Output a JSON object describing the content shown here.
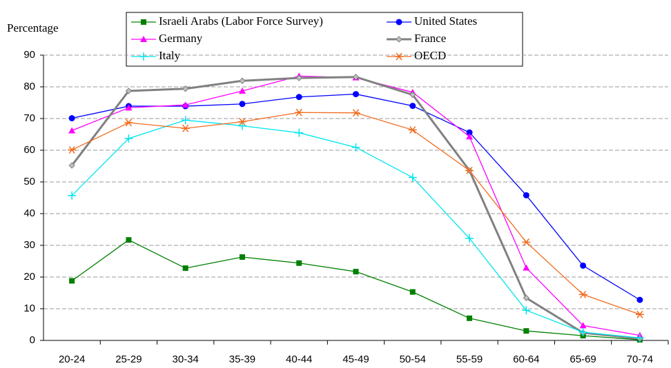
{
  "chart_data": {
    "type": "line",
    "y_label": "Percentage",
    "categories": [
      "20-24",
      "25-29",
      "30-34",
      "35-39",
      "40-44",
      "45-49",
      "50-54",
      "55-59",
      "60-64",
      "65-69",
      "70-74"
    ],
    "series": [
      {
        "name": "Israeli Arabs (Labor Force Survey)",
        "color": "#008000",
        "marker": "square",
        "values": [
          18.8,
          31.7,
          22.8,
          26.3,
          24.4,
          21.7,
          15.3,
          7.0,
          3.0,
          1.5,
          0.2
        ]
      },
      {
        "name": "United States",
        "color": "#0000ff",
        "marker": "circle",
        "values": [
          70.1,
          73.9,
          73.9,
          74.6,
          76.8,
          77.7,
          74.0,
          65.6,
          45.8,
          23.6,
          12.8
        ]
      },
      {
        "name": "Germany",
        "color": "#ff00ff",
        "marker": "triangle",
        "values": [
          66.2,
          73.4,
          74.3,
          78.7,
          83.4,
          82.9,
          78.3,
          64.3,
          22.9,
          4.7,
          1.6
        ]
      },
      {
        "name": "France",
        "color": "#808080",
        "marker": "diamond",
        "width": 3,
        "values": [
          55.2,
          78.7,
          79.4,
          81.9,
          82.8,
          83.1,
          77.5,
          53.6,
          13.4,
          2.4,
          0.6
        ]
      },
      {
        "name": "Italy",
        "color": "#00e5f0",
        "marker": "plus",
        "values": [
          45.7,
          63.7,
          69.5,
          67.7,
          65.5,
          60.9,
          51.4,
          32.2,
          9.5,
          2.6,
          0.8
        ]
      },
      {
        "name": "OECD",
        "color": "#f26b1d",
        "marker": "asterisk",
        "values": [
          60.1,
          68.7,
          66.9,
          69.0,
          71.9,
          71.8,
          66.4,
          53.6,
          31.0,
          14.5,
          8.2
        ]
      }
    ],
    "ylim": [
      0,
      90
    ],
    "yticks": [
      0,
      10,
      20,
      30,
      40,
      50,
      60,
      70,
      80,
      90
    ],
    "grid": true,
    "legend": "top"
  }
}
